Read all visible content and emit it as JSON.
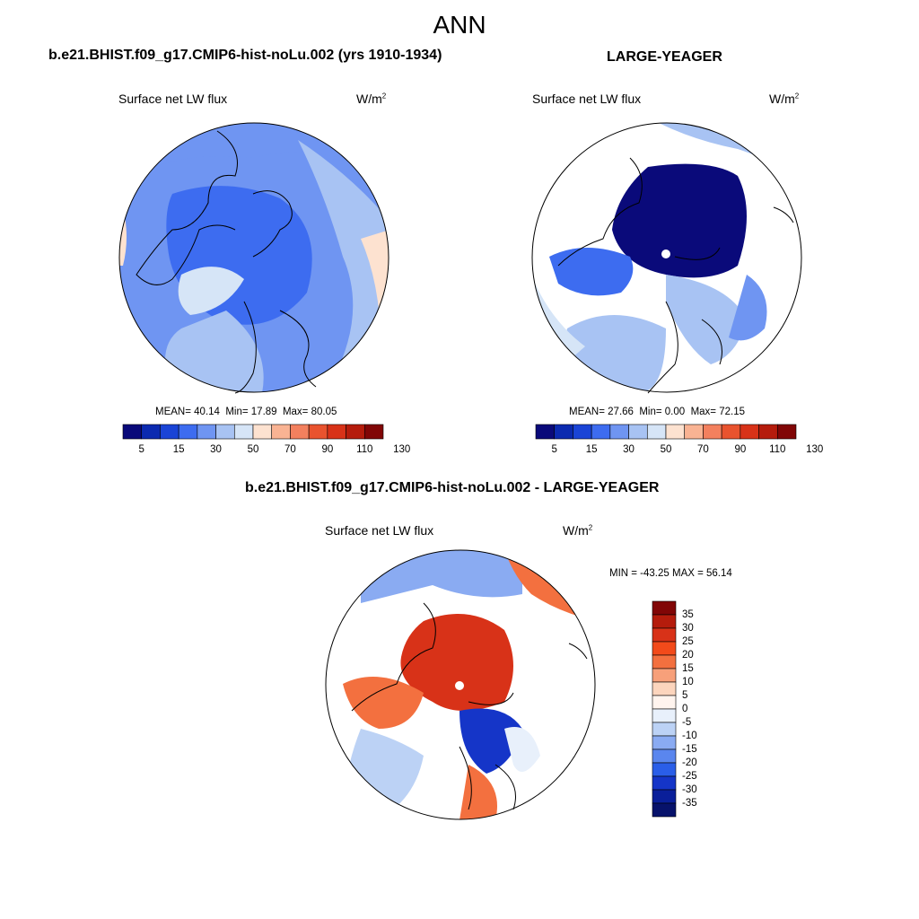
{
  "title": "ANN",
  "panels": [
    {
      "title": "b.e21.BHIST.f09_g17.CMIP6-hist-noLu.002 (yrs 1910-1934)",
      "variable": "Surface net LW flux",
      "units": "W/m",
      "units_exp": "2",
      "stats": {
        "mean_label": "MEAN=",
        "mean": "40.14",
        "min_label": "Min=",
        "min": "17.89",
        "max_label": "Max=",
        "max": "80.05"
      }
    },
    {
      "title": "LARGE-YEAGER",
      "variable": "Surface net LW flux",
      "units": "W/m",
      "units_exp": "2",
      "stats": {
        "mean_label": "MEAN=",
        "mean": "27.66",
        "min_label": "Min=",
        "min": "0.00",
        "max_label": "Max=",
        "max": "72.15"
      }
    },
    {
      "title": "b.e21.BHIST.f09_g17.CMIP6-hist-noLu.002 - LARGE-YEAGER",
      "variable": "Surface net LW flux",
      "units": "W/m",
      "units_exp": "2",
      "stats_text": "MIN = -43.25 MAX =  56.14"
    }
  ],
  "colorbar_abs": {
    "labels": [
      "5",
      "15",
      "30",
      "50",
      "70",
      "90",
      "110",
      "130"
    ],
    "colors": [
      "#0a0a7a",
      "#0b2ab0",
      "#1a44d6",
      "#3d6cf0",
      "#6f95f2",
      "#a8c3f3",
      "#d6e5f7",
      "#fde2d0",
      "#f9b393",
      "#f3805e",
      "#e9532e",
      "#d83218",
      "#b51c0c",
      "#810606"
    ]
  },
  "colorbar_diff": {
    "labels": [
      "35",
      "30",
      "25",
      "20",
      "15",
      "10",
      "5",
      "0",
      "-5",
      "-10",
      "-15",
      "-20",
      "-25",
      "-30",
      "-35"
    ],
    "colors": [
      "#810606",
      "#b51c0c",
      "#d83218",
      "#f24a1a",
      "#f3703f",
      "#f7a07a",
      "#fcd5bd",
      "#fff4ee",
      "#e8f0fb",
      "#bcd2f5",
      "#8aabf2",
      "#5a86ee",
      "#2a5ee8",
      "#1535c8",
      "#0a1f9a",
      "#07126b"
    ]
  }
}
